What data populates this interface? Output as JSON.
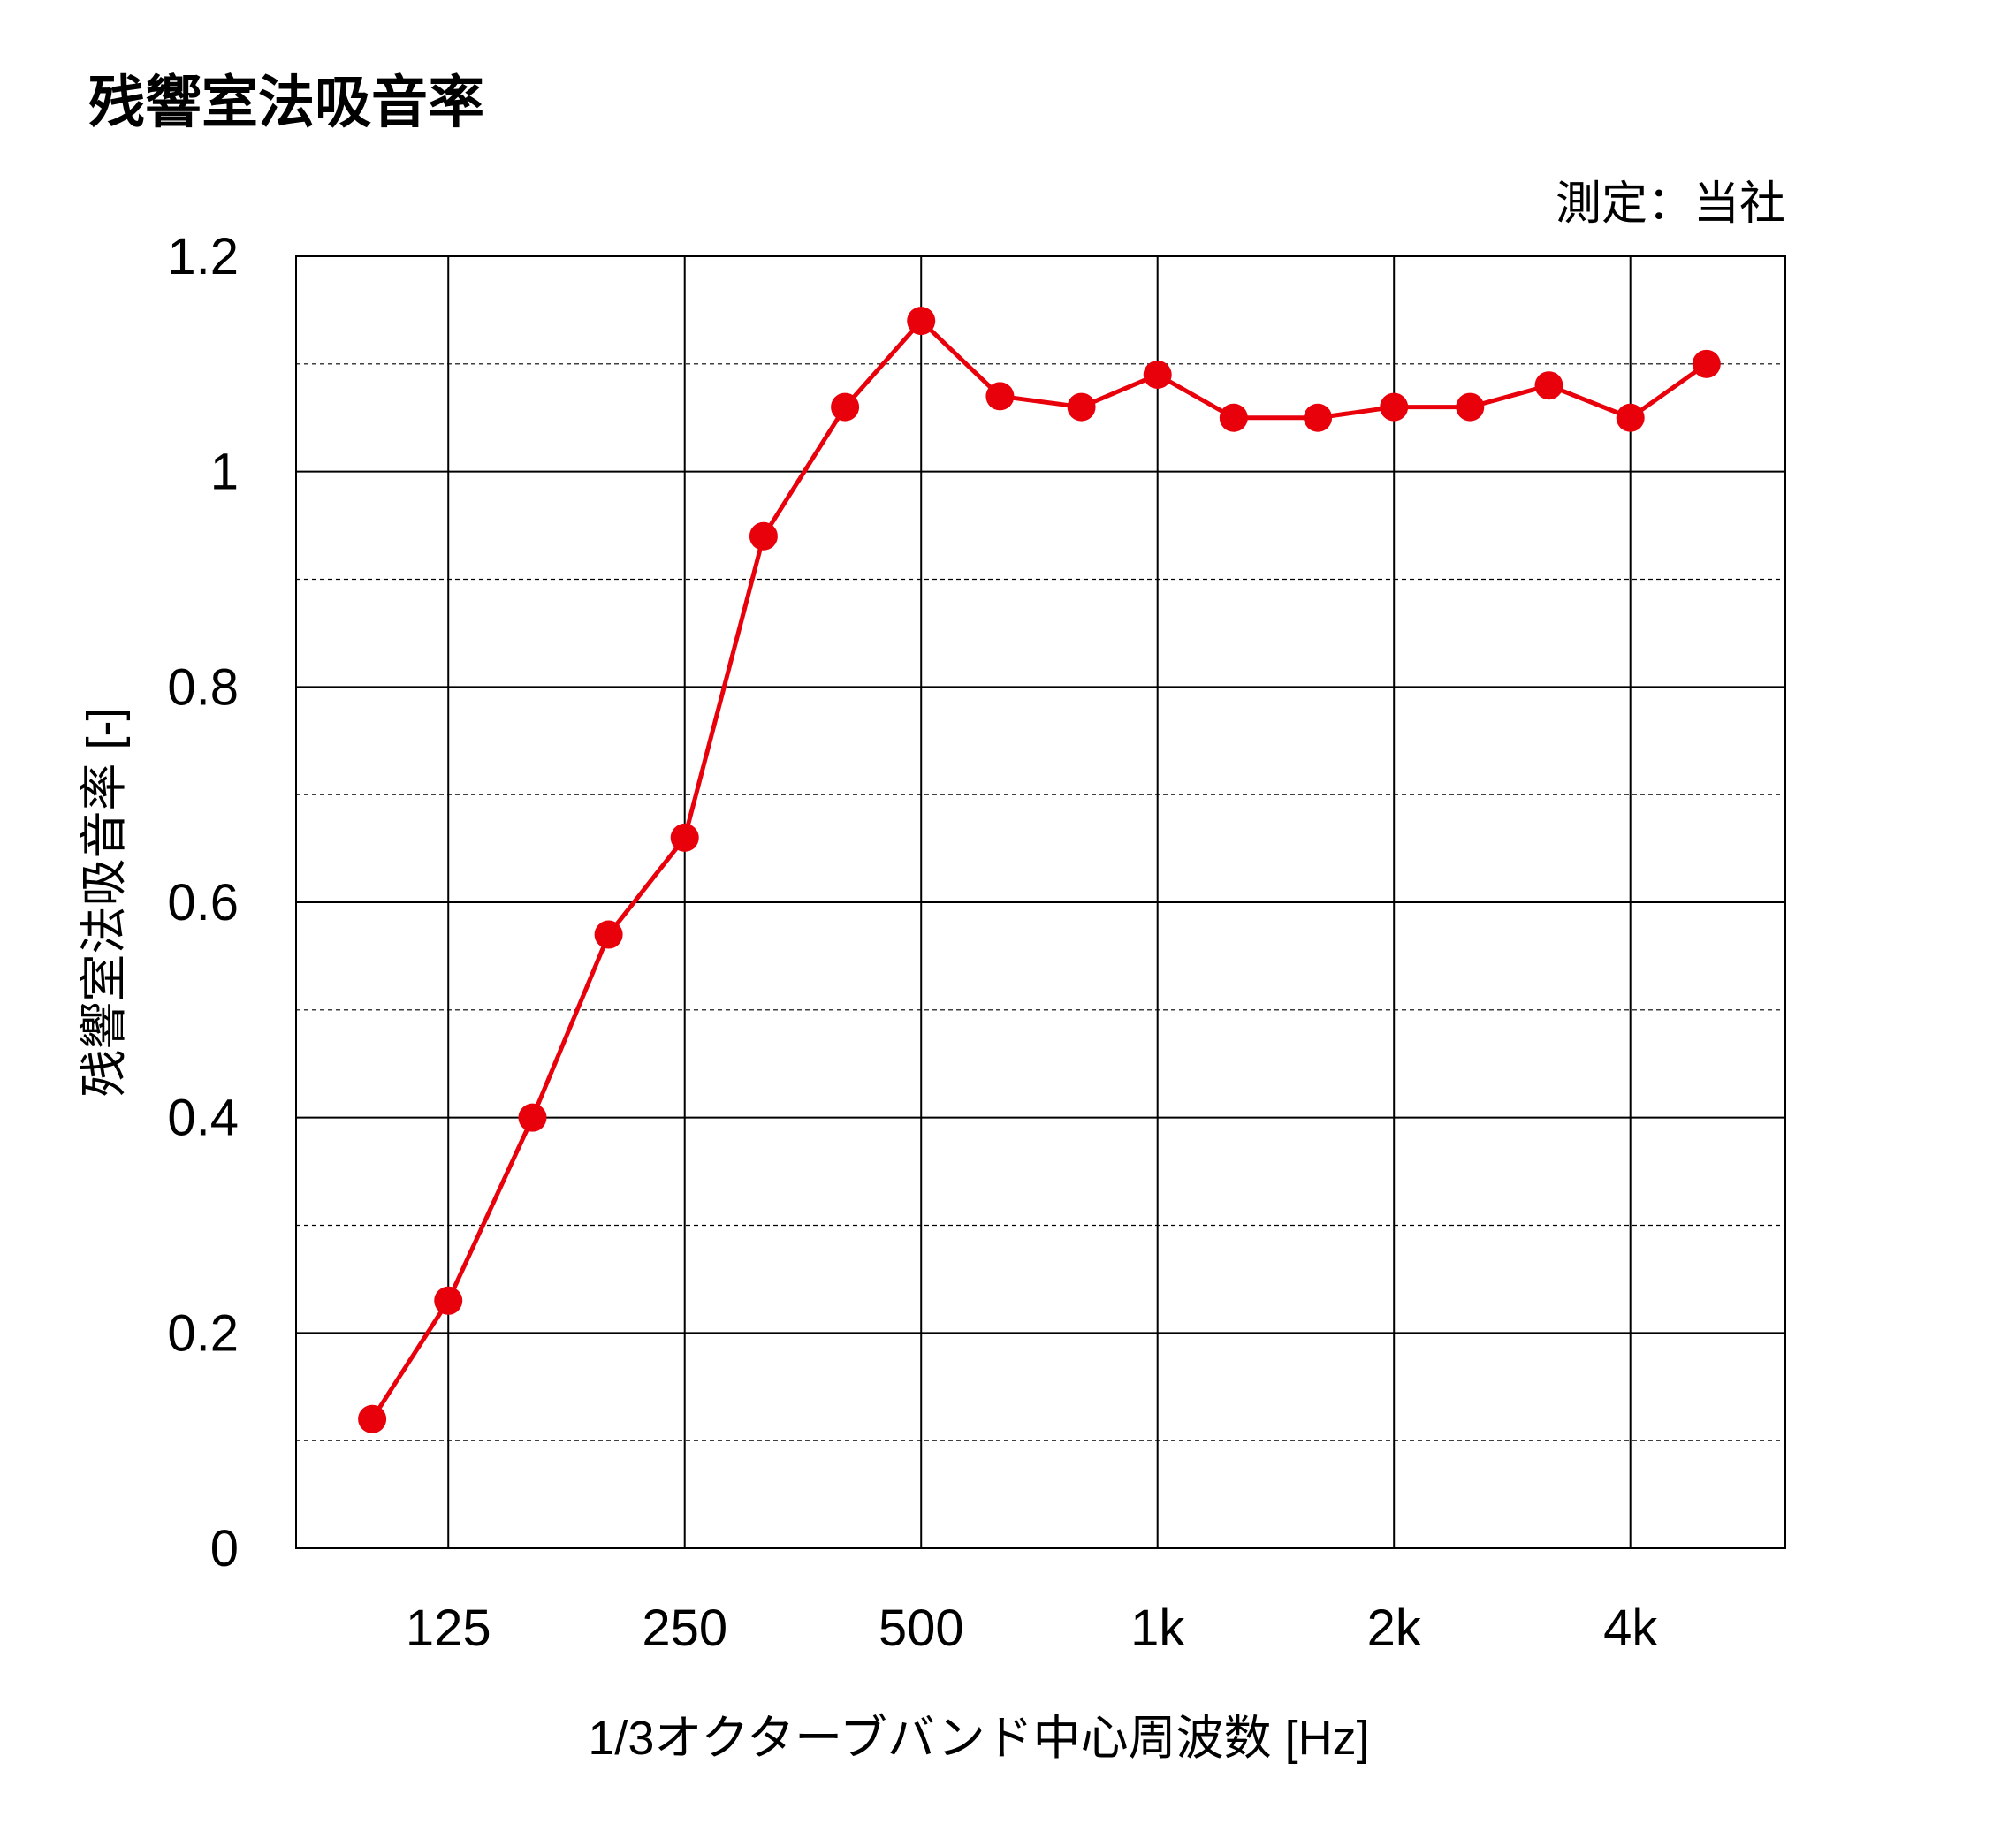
{
  "title": "残響室法吸音率",
  "note": "測定：当社",
  "colors": {
    "series": "#e8000b",
    "grid": "#000000",
    "text": "#000000"
  },
  "chart_data": {
    "type": "line",
    "title": "残響室法吸音率",
    "xlabel": "1/3オクターブバンド中心周波数 [Hz]",
    "ylabel": "残響室法吸音率 [-]",
    "x_scale": "log",
    "xlim": [
      80,
      6300
    ],
    "ylim": [
      0,
      1.2
    ],
    "y_ticks": [
      "0",
      "0.2",
      "0.4",
      "0.6",
      "0.8",
      "1",
      "1.2"
    ],
    "y_tick_values": [
      0,
      0.2,
      0.4,
      0.6,
      0.8,
      1.0,
      1.2
    ],
    "y_minor_gridlines": [
      0.1,
      0.3,
      0.5,
      0.7,
      0.9,
      1.1
    ],
    "x_ticks": [
      "125",
      "250",
      "500",
      "1k",
      "2k",
      "4k"
    ],
    "x_tick_values": [
      125,
      250,
      500,
      1000,
      2000,
      4000
    ],
    "grid": true,
    "legend": "none",
    "series": [
      {
        "x": [
          100,
          125,
          160,
          200,
          250,
          315,
          400,
          500,
          630,
          800,
          1000,
          1250,
          1600,
          2000,
          2500,
          3150,
          4000,
          5000
        ],
        "values": [
          0.12,
          0.23,
          0.4,
          0.57,
          0.66,
          0.94,
          1.06,
          1.14,
          1.07,
          1.06,
          1.09,
          1.05,
          1.05,
          1.06,
          1.06,
          1.08,
          1.05,
          1.1
        ]
      }
    ]
  }
}
